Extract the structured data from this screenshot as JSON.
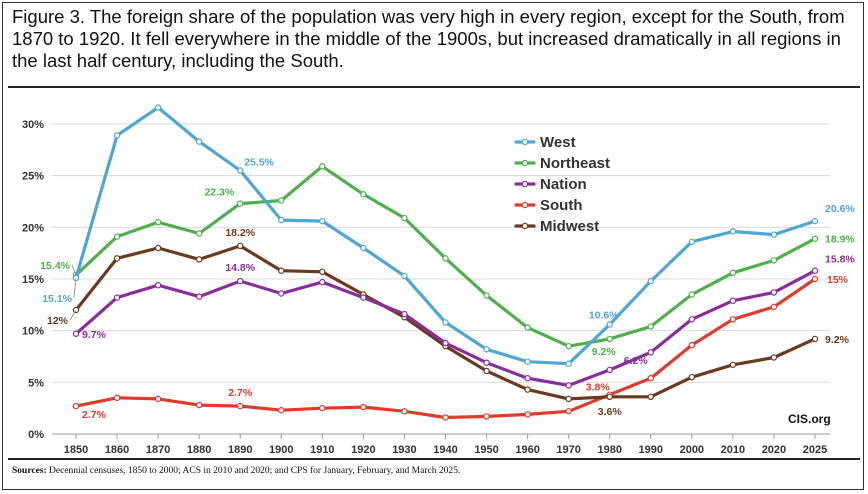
{
  "title": "Figure 3. The foreign share of the population was very high in every region, except for the South, from 1870 to 1920. It fell everywhere in the middle of the 1900s, but increased dramatically in all regions in the last half century, including the South.",
  "sources_label": "Sources:",
  "sources_text": "Decennial censuses, 1850 to 2000; ACS in 2010 and 2020; and CPS for January, February, and March 2025.",
  "watermark": "CIS.org",
  "chart_data": {
    "type": "line",
    "title": "",
    "xlabel": "",
    "ylabel": "",
    "ylim": [
      0,
      30
    ],
    "yticks": [
      "0%",
      "5%",
      "10%",
      "15%",
      "20%",
      "25%",
      "30%"
    ],
    "grid": true,
    "legend_position": "top-center",
    "categories": [
      "1850",
      "1860",
      "1870",
      "1880",
      "1890",
      "1900",
      "1910",
      "1920",
      "1930",
      "1940",
      "1950",
      "1960",
      "1970",
      "1980",
      "1990",
      "2000",
      "2010",
      "2020",
      "2025"
    ],
    "series": [
      {
        "name": "West",
        "color": "#4ea6d6",
        "values": [
          15.1,
          28.9,
          31.6,
          28.3,
          25.5,
          20.7,
          20.6,
          18.0,
          15.3,
          10.8,
          8.2,
          7.0,
          6.8,
          10.6,
          14.8,
          18.6,
          19.6,
          19.3,
          20.6
        ]
      },
      {
        "name": "Northeast",
        "color": "#4fb04b",
        "values": [
          15.4,
          19.1,
          20.5,
          19.4,
          22.3,
          22.6,
          25.9,
          23.2,
          20.9,
          17.0,
          13.4,
          10.3,
          8.5,
          9.2,
          10.4,
          13.5,
          15.6,
          16.8,
          18.9
        ]
      },
      {
        "name": "Nation",
        "color": "#8a2d9c",
        "values": [
          9.7,
          13.2,
          14.4,
          13.3,
          14.8,
          13.6,
          14.7,
          13.2,
          11.6,
          8.8,
          6.9,
          5.4,
          4.7,
          6.2,
          7.9,
          11.1,
          12.9,
          13.7,
          15.8
        ]
      },
      {
        "name": "South",
        "color": "#e03a2b",
        "values": [
          2.7,
          3.5,
          3.4,
          2.8,
          2.7,
          2.3,
          2.5,
          2.6,
          2.2,
          1.6,
          1.7,
          1.9,
          2.2,
          3.8,
          5.4,
          8.6,
          11.1,
          12.3,
          15.0
        ]
      },
      {
        "name": "Midwest",
        "color": "#6b3a1e",
        "values": [
          12.0,
          17.0,
          18.0,
          16.9,
          18.2,
          15.8,
          15.7,
          13.5,
          11.3,
          8.5,
          6.1,
          4.3,
          3.4,
          3.6,
          3.6,
          5.5,
          6.7,
          7.4,
          9.2
        ]
      }
    ],
    "data_labels": [
      {
        "series": "West",
        "x": "1850",
        "text": "15.1%"
      },
      {
        "series": "Northeast",
        "x": "1850",
        "text": "15.4%"
      },
      {
        "series": "Midwest",
        "x": "1850",
        "text": "12%"
      },
      {
        "series": "Nation",
        "x": "1850",
        "text": "9.7%"
      },
      {
        "series": "South",
        "x": "1850",
        "text": "2.7%"
      },
      {
        "series": "West",
        "x": "1890",
        "text": "25.5%"
      },
      {
        "series": "Northeast",
        "x": "1890",
        "text": "22.3%"
      },
      {
        "series": "Midwest",
        "x": "1890",
        "text": "18.2%"
      },
      {
        "series": "Nation",
        "x": "1890",
        "text": "14.8%"
      },
      {
        "series": "South",
        "x": "1890",
        "text": "2.7%"
      },
      {
        "series": "West",
        "x": "1980",
        "text": "10.6%"
      },
      {
        "series": "Northeast",
        "x": "1980",
        "text": "9.2%"
      },
      {
        "series": "Nation",
        "x": "1980",
        "text": "6.2%"
      },
      {
        "series": "South",
        "x": "1980",
        "text": "3.8%"
      },
      {
        "series": "Midwest",
        "x": "1980",
        "text": "3.6%"
      },
      {
        "series": "West",
        "x": "2025",
        "text": "20.6%"
      },
      {
        "series": "Northeast",
        "x": "2025",
        "text": "18.9%"
      },
      {
        "series": "Nation",
        "x": "2025",
        "text": "15.8%"
      },
      {
        "series": "South",
        "x": "2025",
        "text": "15%"
      },
      {
        "series": "Midwest",
        "x": "2025",
        "text": "9.2%"
      }
    ]
  }
}
